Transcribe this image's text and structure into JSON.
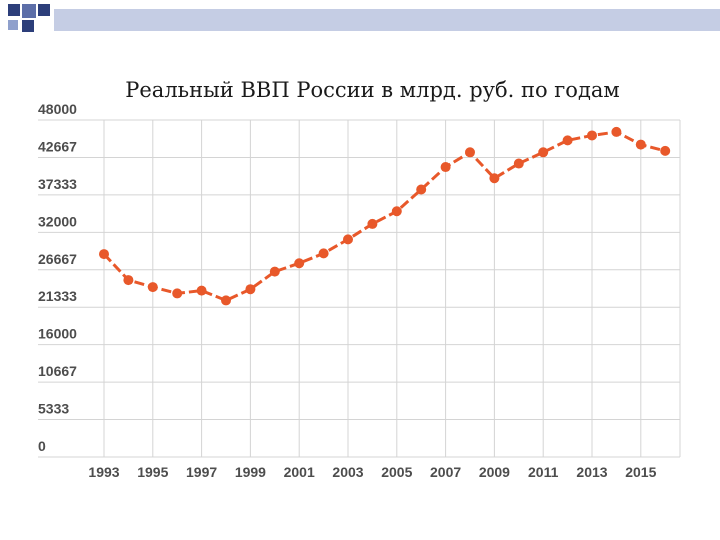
{
  "chart_data": {
    "type": "line",
    "title": "Реальный ВВП России в млрд. руб. по годам",
    "x": [
      1993,
      1994,
      1995,
      1996,
      1997,
      1998,
      1999,
      2000,
      2001,
      2002,
      2003,
      2004,
      2005,
      2006,
      2007,
      2008,
      2009,
      2010,
      2011,
      2012,
      2013,
      2014,
      2015,
      2016
    ],
    "series": [
      {
        "values": [
          28900,
          25200,
          24200,
          23300,
          23700,
          22300,
          23900,
          26400,
          27600,
          29000,
          31000,
          33200,
          35000,
          38100,
          41300,
          43400,
          39700,
          41800,
          43400,
          45100,
          45800,
          46300,
          44500,
          43600
        ],
        "color": "#e8582a"
      }
    ],
    "ylim": [
      0,
      48000
    ],
    "yticks": [
      "48000",
      "42667",
      "37333",
      "32000",
      "26667",
      "21333",
      "16000",
      "10667",
      "5333",
      "0"
    ],
    "xticks": [
      "1993",
      "1995",
      "1997",
      "1999",
      "2001",
      "2003",
      "2005",
      "2007",
      "2009",
      "2011",
      "2013",
      "2015"
    ],
    "grid": true,
    "legend": "none"
  },
  "colors": {
    "line": "#e8582a",
    "grid": "#d4d4d4",
    "deco_dark": "#2c3e7a",
    "deco_light": "#8fa0cc"
  }
}
